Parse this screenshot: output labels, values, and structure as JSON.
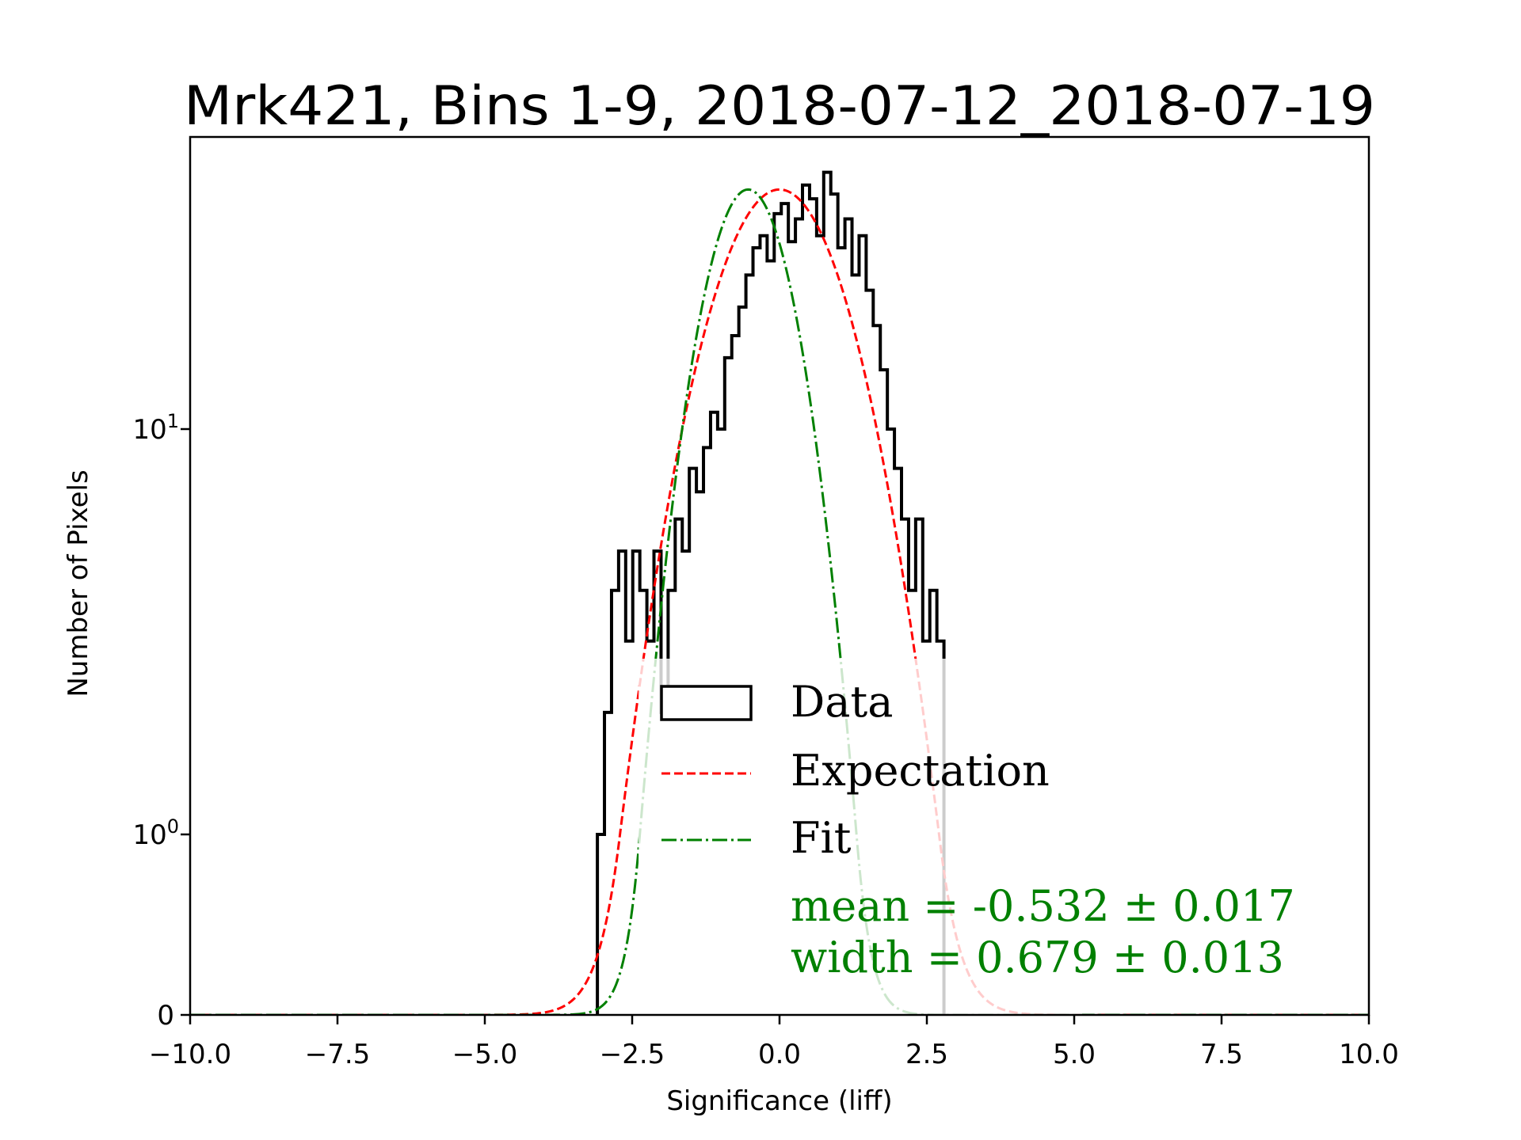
{
  "chart_data": {
    "type": "histogram",
    "title": "Mrk421, Bins 1-9, 2018-07-12_2018-07-19",
    "xlabel": "Significance (liff)",
    "ylabel": "Number of Pixels",
    "xlim": [
      -10,
      10
    ],
    "yscale": "symlog",
    "ylim": [
      0,
      53
    ],
    "xticks": [
      -10.0,
      -7.5,
      -5.0,
      -2.5,
      0.0,
      2.5,
      5.0,
      7.5,
      10.0
    ],
    "xtick_labels": [
      "−10.0",
      "−7.5",
      "−5.0",
      "−2.5",
      "0.0",
      "2.5",
      "5.0",
      "7.5",
      "10.0"
    ],
    "yticks": [
      0,
      1,
      10
    ],
    "ytick_labels": [
      {
        "base": "0",
        "exp": ""
      },
      {
        "base": "10",
        "exp": "0"
      },
      {
        "base": "10",
        "exp": "1"
      }
    ],
    "grid": false,
    "histogram": {
      "name": "Data",
      "color": "#000000",
      "bin_start": -3.09,
      "bin_width": 0.12,
      "counts": [
        1,
        2,
        4,
        5,
        3,
        5,
        4,
        3,
        5,
        2,
        4,
        6,
        5,
        8,
        7,
        9,
        11,
        10,
        15,
        17,
        20,
        24,
        28,
        30,
        26,
        34,
        36,
        29,
        33,
        40,
        37,
        30,
        43,
        38,
        28,
        33,
        24,
        30,
        22,
        18,
        14,
        10,
        8,
        6,
        4,
        6,
        3,
        4,
        3
      ]
    },
    "series": [
      {
        "name": "Expectation",
        "type": "gaussian",
        "mean": 0.0,
        "sigma": 1.0,
        "amplitude": 39,
        "color": "#ff0000",
        "linestyle": "dashed"
      },
      {
        "name": "Fit",
        "type": "gaussian",
        "mean": -0.532,
        "sigma": 0.679,
        "amplitude": 39,
        "color": "#008000",
        "linestyle": "dashdot"
      }
    ],
    "legend": {
      "location": "lower-center",
      "entries": [
        "Data",
        "Expectation",
        "Fit"
      ],
      "fit_text": [
        "mean = -0.532 ± 0.017",
        "width = 0.679 ± 0.013"
      ],
      "fit_text_color": "#008000"
    }
  }
}
